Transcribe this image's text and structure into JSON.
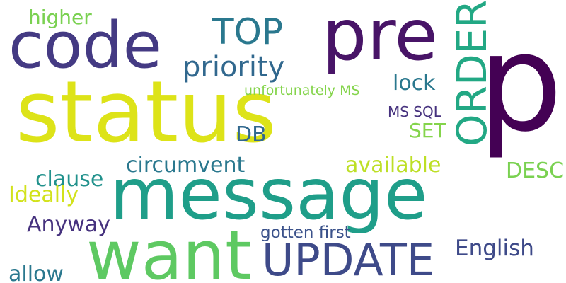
{
  "cloud": {
    "background": "#ffffff",
    "words": [
      {
        "text": "p",
        "color": "#440154"
      },
      {
        "text": "status",
        "color": "#dde318"
      },
      {
        "text": "message",
        "color": "#1f9e89"
      },
      {
        "text": "code",
        "color": "#443a83"
      },
      {
        "text": "pre",
        "color": "#481467"
      },
      {
        "text": "want",
        "color": "#5ec962"
      },
      {
        "text": "UPDATE",
        "color": "#3e4a89"
      },
      {
        "text": "ORDER",
        "color": "#22a884"
      },
      {
        "text": "TOP",
        "color": "#2a788e"
      },
      {
        "text": "priority",
        "color": "#31688e"
      },
      {
        "text": "higher",
        "color": "#7ad151"
      },
      {
        "text": "lock",
        "color": "#2a788e"
      },
      {
        "text": "unfortunately MS",
        "color": "#84d44b"
      },
      {
        "text": "MS SQL",
        "color": "#46327e"
      },
      {
        "text": "DB",
        "color": "#31688e"
      },
      {
        "text": "SET",
        "color": "#84d44b"
      },
      {
        "text": "circumvent",
        "color": "#2a788e"
      },
      {
        "text": "available",
        "color": "#bddf26"
      },
      {
        "text": "DESC",
        "color": "#7ad151"
      },
      {
        "text": "clause",
        "color": "#21918c"
      },
      {
        "text": "Ideally",
        "color": "#d2e21b"
      },
      {
        "text": "Anyway",
        "color": "#46327e"
      },
      {
        "text": "gotten first",
        "color": "#3b528b"
      },
      {
        "text": "English",
        "color": "#3e4a89"
      },
      {
        "text": "allow",
        "color": "#2a788e"
      }
    ]
  }
}
